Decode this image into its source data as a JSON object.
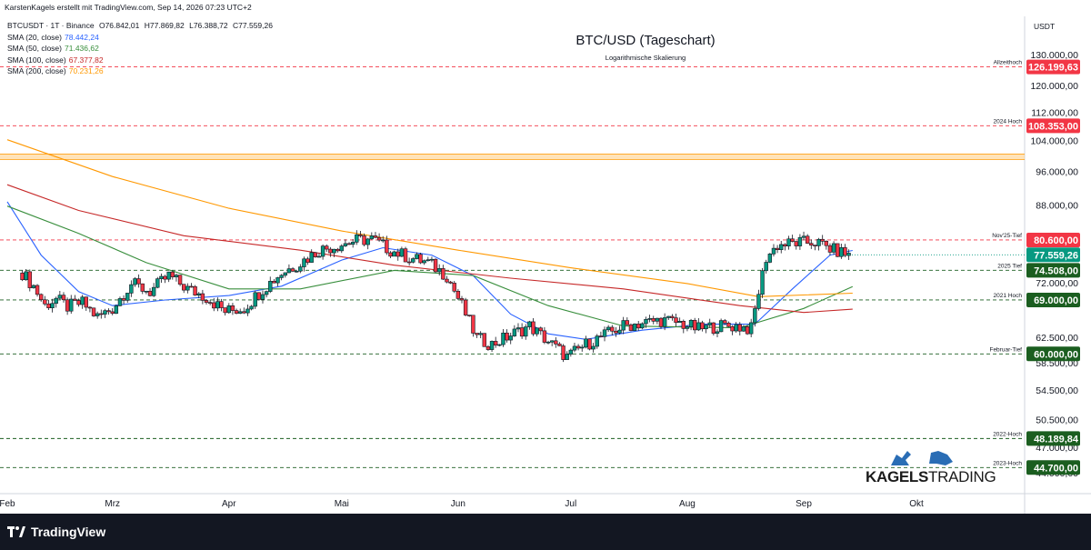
{
  "header": {
    "author_line": "KarstenKagels erstellt mit TradingView.com, Sep 14, 2026 07:23 UTC+2",
    "symbol_line": "BTCUSDT · 1T · Binance",
    "ohlc": {
      "open": "O76.842,01",
      "high": "H77.869,82",
      "low": "L76.388,72",
      "close": "C77.559,26"
    }
  },
  "indicators": [
    {
      "label": "SMA (20, close)",
      "value": "78.442,24",
      "color": "#2962ff"
    },
    {
      "label": "SMA (50, close)",
      "value": "71.436,62",
      "color": "#388e3c"
    },
    {
      "label": "SMA (100, close)",
      "value": "67.377,82",
      "color": "#c62828"
    },
    {
      "label": "SMA (200, close)",
      "value": "70.231,26",
      "color": "#ff9800"
    }
  ],
  "footer": {
    "brand": "TradingView"
  },
  "watermark": {
    "part1": "KAGELS",
    "part2": "TRADING"
  },
  "colors": {
    "up": "#089981",
    "down": "#f23645",
    "candle": "#131722",
    "sma20": "#2962ff",
    "sma50": "#388e3c",
    "sma100": "#c62828",
    "sma200": "#ff9800",
    "resistance": "#f23645",
    "support": "#1b5e20",
    "price": "#089981"
  },
  "chart_data": {
    "type": "candlestick",
    "title": "BTC/USD (Tageschart)",
    "subtitle": "Logarithmische Skalierung",
    "y_unit": "USDT",
    "y_scale": "log",
    "ylim": [
      43500,
      132000
    ],
    "y_ticks": [
      {
        "value": 44000,
        "label": "44.000,00"
      },
      {
        "value": 47000,
        "label": "47.000,00"
      },
      {
        "value": 50500,
        "label": "50.500,00"
      },
      {
        "value": 54500,
        "label": "54.500,00"
      },
      {
        "value": 58500,
        "label": "58.500,00"
      },
      {
        "value": 62500,
        "label": "62.500,00"
      },
      {
        "value": 72000,
        "label": "72.000,00"
      },
      {
        "value": 77500,
        "label": "77.500,00"
      },
      {
        "value": 88000,
        "label": "88.000,00"
      },
      {
        "value": 96000,
        "label": "96.000,00"
      },
      {
        "value": 104000,
        "label": "104.000,00"
      },
      {
        "value": 112000,
        "label": "112.000,00"
      },
      {
        "value": 120000,
        "label": "120.000,00"
      },
      {
        "value": 130000,
        "label": "130.000,00"
      }
    ],
    "x_months": [
      "Feb",
      "Mrz",
      "Apr",
      "Mai",
      "Jun",
      "Jul",
      "Aug",
      "Sep",
      "Okt"
    ],
    "levels": [
      {
        "name": "Allzeithoch",
        "value": 126199.63,
        "label": "126.199,63",
        "kind": "resistance"
      },
      {
        "name": "2024 Hoch",
        "value": 108353,
        "label": "108.353,00",
        "kind": "resistance"
      },
      {
        "name": "",
        "value": 100000,
        "label": "",
        "kind": "zone"
      },
      {
        "name": "Nov'25-Tief",
        "value": 80600,
        "label": "80.600,00",
        "kind": "resistance"
      },
      {
        "name": "2025 Tief",
        "value": 74508,
        "label": "74.508,00",
        "kind": "support"
      },
      {
        "name": "2021 Hoch",
        "value": 69000,
        "label": "69.000,00",
        "kind": "support"
      },
      {
        "name": "Februar-Tief",
        "value": 60000,
        "label": "60.000,00",
        "kind": "support"
      },
      {
        "name": "2022-Hoch",
        "value": 48189.84,
        "label": "48.189,84",
        "kind": "support"
      },
      {
        "name": "2023-Hoch",
        "value": 44700,
        "label": "44.700,00",
        "kind": "support"
      }
    ],
    "current_price": {
      "value": 77559.26,
      "label": "77.559,26"
    },
    "price_path": [
      {
        "date": "2026-02-05",
        "close": 74000
      },
      {
        "date": "2026-02-08",
        "close": 71500
      },
      {
        "date": "2026-02-11",
        "close": 68000
      },
      {
        "date": "2026-02-14",
        "close": 69200
      },
      {
        "date": "2026-02-17",
        "close": 67800
      },
      {
        "date": "2026-02-21",
        "close": 68500
      },
      {
        "date": "2026-02-25",
        "close": 66000
      },
      {
        "date": "2026-03-01",
        "close": 67500
      },
      {
        "date": "2026-03-06",
        "close": 72000
      },
      {
        "date": "2026-03-11",
        "close": 70500
      },
      {
        "date": "2026-03-16",
        "close": 73500
      },
      {
        "date": "2026-03-21",
        "close": 71000
      },
      {
        "date": "2026-03-26",
        "close": 69500
      },
      {
        "date": "2026-03-31",
        "close": 67000
      },
      {
        "date": "2026-04-05",
        "close": 67500
      },
      {
        "date": "2026-04-10",
        "close": 71000
      },
      {
        "date": "2026-04-15",
        "close": 74000
      },
      {
        "date": "2026-04-20",
        "close": 76000
      },
      {
        "date": "2026-04-25",
        "close": 78500
      },
      {
        "date": "2026-04-30",
        "close": 79500
      },
      {
        "date": "2026-05-05",
        "close": 80500
      },
      {
        "date": "2026-05-09",
        "close": 80800
      },
      {
        "date": "2026-05-14",
        "close": 78500
      },
      {
        "date": "2026-05-19",
        "close": 77000
      },
      {
        "date": "2026-05-24",
        "close": 76000
      },
      {
        "date": "2026-05-29",
        "close": 73500
      },
      {
        "date": "2026-06-02",
        "close": 68000
      },
      {
        "date": "2026-06-06",
        "close": 62500
      },
      {
        "date": "2026-06-10",
        "close": 61500
      },
      {
        "date": "2026-06-15",
        "close": 63000
      },
      {
        "date": "2026-06-20",
        "close": 64500
      },
      {
        "date": "2026-06-25",
        "close": 62000
      },
      {
        "date": "2026-06-30",
        "close": 59500
      },
      {
        "date": "2026-07-05",
        "close": 61500
      },
      {
        "date": "2026-07-10",
        "close": 63000
      },
      {
        "date": "2026-07-15",
        "close": 64500
      },
      {
        "date": "2026-07-20",
        "close": 65000
      },
      {
        "date": "2026-07-25",
        "close": 65500
      },
      {
        "date": "2026-07-30",
        "close": 65000
      },
      {
        "date": "2026-08-04",
        "close": 64000
      },
      {
        "date": "2026-08-09",
        "close": 64500
      },
      {
        "date": "2026-08-14",
        "close": 64500
      },
      {
        "date": "2026-08-18",
        "close": 64000
      },
      {
        "date": "2026-08-20",
        "close": 70500
      },
      {
        "date": "2026-08-22",
        "close": 77000
      },
      {
        "date": "2026-08-25",
        "close": 79500
      },
      {
        "date": "2026-08-30",
        "close": 80000
      },
      {
        "date": "2026-09-04",
        "close": 80200
      },
      {
        "date": "2026-09-09",
        "close": 78500
      },
      {
        "date": "2026-09-13",
        "close": 77559
      }
    ],
    "sma_series": [
      {
        "name": "SMA (20, close)",
        "color": "#2962ff",
        "points": [
          {
            "date": "2026-02-01",
            "value": 89000
          },
          {
            "date": "2026-02-10",
            "value": 77500
          },
          {
            "date": "2026-02-20",
            "value": 70500
          },
          {
            "date": "2026-03-01",
            "value": 68000
          },
          {
            "date": "2026-03-15",
            "value": 69000
          },
          {
            "date": "2026-04-01",
            "value": 69800
          },
          {
            "date": "2026-04-15",
            "value": 71500
          },
          {
            "date": "2026-05-01",
            "value": 76500
          },
          {
            "date": "2026-05-12",
            "value": 79000
          },
          {
            "date": "2026-05-25",
            "value": 77500
          },
          {
            "date": "2026-06-05",
            "value": 73500
          },
          {
            "date": "2026-06-15",
            "value": 66500
          },
          {
            "date": "2026-06-25",
            "value": 63200
          },
          {
            "date": "2026-07-05",
            "value": 62300
          },
          {
            "date": "2026-07-20",
            "value": 63800
          },
          {
            "date": "2026-08-05",
            "value": 64800
          },
          {
            "date": "2026-08-19",
            "value": 64800
          },
          {
            "date": "2026-08-29",
            "value": 71000
          },
          {
            "date": "2026-09-08",
            "value": 77500
          },
          {
            "date": "2026-09-14",
            "value": 78442
          }
        ]
      },
      {
        "name": "SMA (50, close)",
        "color": "#388e3c",
        "points": [
          {
            "date": "2026-02-01",
            "value": 88000
          },
          {
            "date": "2026-02-20",
            "value": 82000
          },
          {
            "date": "2026-03-10",
            "value": 76000
          },
          {
            "date": "2026-04-01",
            "value": 71000
          },
          {
            "date": "2026-04-20",
            "value": 71000
          },
          {
            "date": "2026-05-15",
            "value": 74500
          },
          {
            "date": "2026-06-05",
            "value": 73500
          },
          {
            "date": "2026-06-25",
            "value": 68000
          },
          {
            "date": "2026-07-15",
            "value": 64500
          },
          {
            "date": "2026-08-15",
            "value": 64200
          },
          {
            "date": "2026-09-01",
            "value": 67500
          },
          {
            "date": "2026-09-14",
            "value": 71437
          }
        ]
      },
      {
        "name": "SMA (100, close)",
        "color": "#c62828",
        "points": [
          {
            "date": "2026-02-01",
            "value": 93000
          },
          {
            "date": "2026-02-20",
            "value": 87000
          },
          {
            "date": "2026-03-20",
            "value": 81500
          },
          {
            "date": "2026-04-20",
            "value": 78500
          },
          {
            "date": "2026-05-15",
            "value": 75500
          },
          {
            "date": "2026-06-15",
            "value": 73000
          },
          {
            "date": "2026-07-15",
            "value": 71000
          },
          {
            "date": "2026-08-15",
            "value": 68000
          },
          {
            "date": "2026-09-01",
            "value": 66800
          },
          {
            "date": "2026-09-14",
            "value": 67378
          }
        ]
      },
      {
        "name": "SMA (200, close)",
        "color": "#ff9800",
        "points": [
          {
            "date": "2026-02-01",
            "value": 104500
          },
          {
            "date": "2026-03-01",
            "value": 95000
          },
          {
            "date": "2026-04-01",
            "value": 87500
          },
          {
            "date": "2026-05-01",
            "value": 82500
          },
          {
            "date": "2026-06-01",
            "value": 78500
          },
          {
            "date": "2026-07-01",
            "value": 75000
          },
          {
            "date": "2026-08-01",
            "value": 72000
          },
          {
            "date": "2026-08-20",
            "value": 69600
          },
          {
            "date": "2026-09-14",
            "value": 70231
          }
        ]
      }
    ]
  }
}
